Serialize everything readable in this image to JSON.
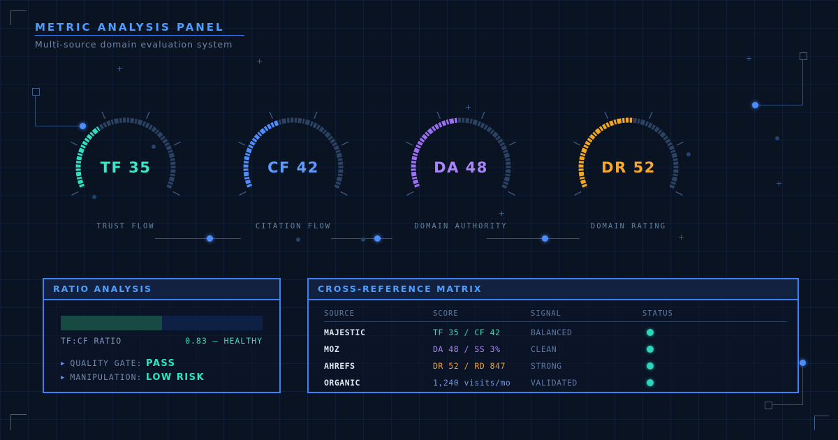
{
  "header": {
    "title": "METRIC ANALYSIS PANEL",
    "subtitle": "Multi-source domain evaluation system"
  },
  "gauges": [
    {
      "metric": "TF",
      "value": 35,
      "display": "TF 35",
      "label": "TRUST FLOW",
      "color": "#2fe0bf"
    },
    {
      "metric": "CF",
      "value": 42,
      "display": "CF 42",
      "label": "CITATION FLOW",
      "color": "#4d8dff"
    },
    {
      "metric": "DA",
      "value": 48,
      "display": "DA 48",
      "label": "DOMAIN AUTHORITY",
      "color": "#9b6ef5"
    },
    {
      "metric": "DR",
      "value": 52,
      "display": "DR 52",
      "label": "DOMAIN RATING",
      "color": "#f5a623"
    }
  ],
  "ratio_panel": {
    "title": "RATIO ANALYSIS",
    "bar_fill_pct": 50,
    "ratio_label": "TF:CF RATIO",
    "ratio_value": "0.83 — HEALTHY",
    "bullet": "▶",
    "rows": [
      {
        "label": "QUALITY GATE:",
        "value": "PASS"
      },
      {
        "label": "MANIPULATION:",
        "value": "LOW RISK"
      }
    ]
  },
  "matrix_panel": {
    "title": "CROSS-REFERENCE MATRIX",
    "columns": [
      "SOURCE",
      "SCORE",
      "SIGNAL",
      "STATUS"
    ],
    "rows": [
      {
        "source": "MAJESTIC",
        "score": "TF 35 / CF 42",
        "score_color": "#2edfbe",
        "signal": "BALANCED",
        "status": "ok"
      },
      {
        "source": "MOZ",
        "score": "DA 48 / SS 3%",
        "score_color": "#a985f7",
        "signal": "CLEAN",
        "status": "ok"
      },
      {
        "source": "AHREFS",
        "score": "DR 52 / RD 847",
        "score_color": "#f0a32a",
        "signal": "STRONG",
        "status": "ok"
      },
      {
        "source": "ORGANIC",
        "score": "1,240 visits/mo",
        "score_color": "#6f9ae3",
        "signal": "VALIDATED",
        "status": "ok"
      }
    ],
    "status_dot_color": "#2dd4bf"
  },
  "colors": {
    "background": "#0a1322",
    "accent_blue": "#3b82f6",
    "panel_title": "#4da0ff",
    "gauge_track": "#2b4263",
    "status_dot": "#2dd4bf",
    "healthy_teal": "#35dcb5"
  }
}
